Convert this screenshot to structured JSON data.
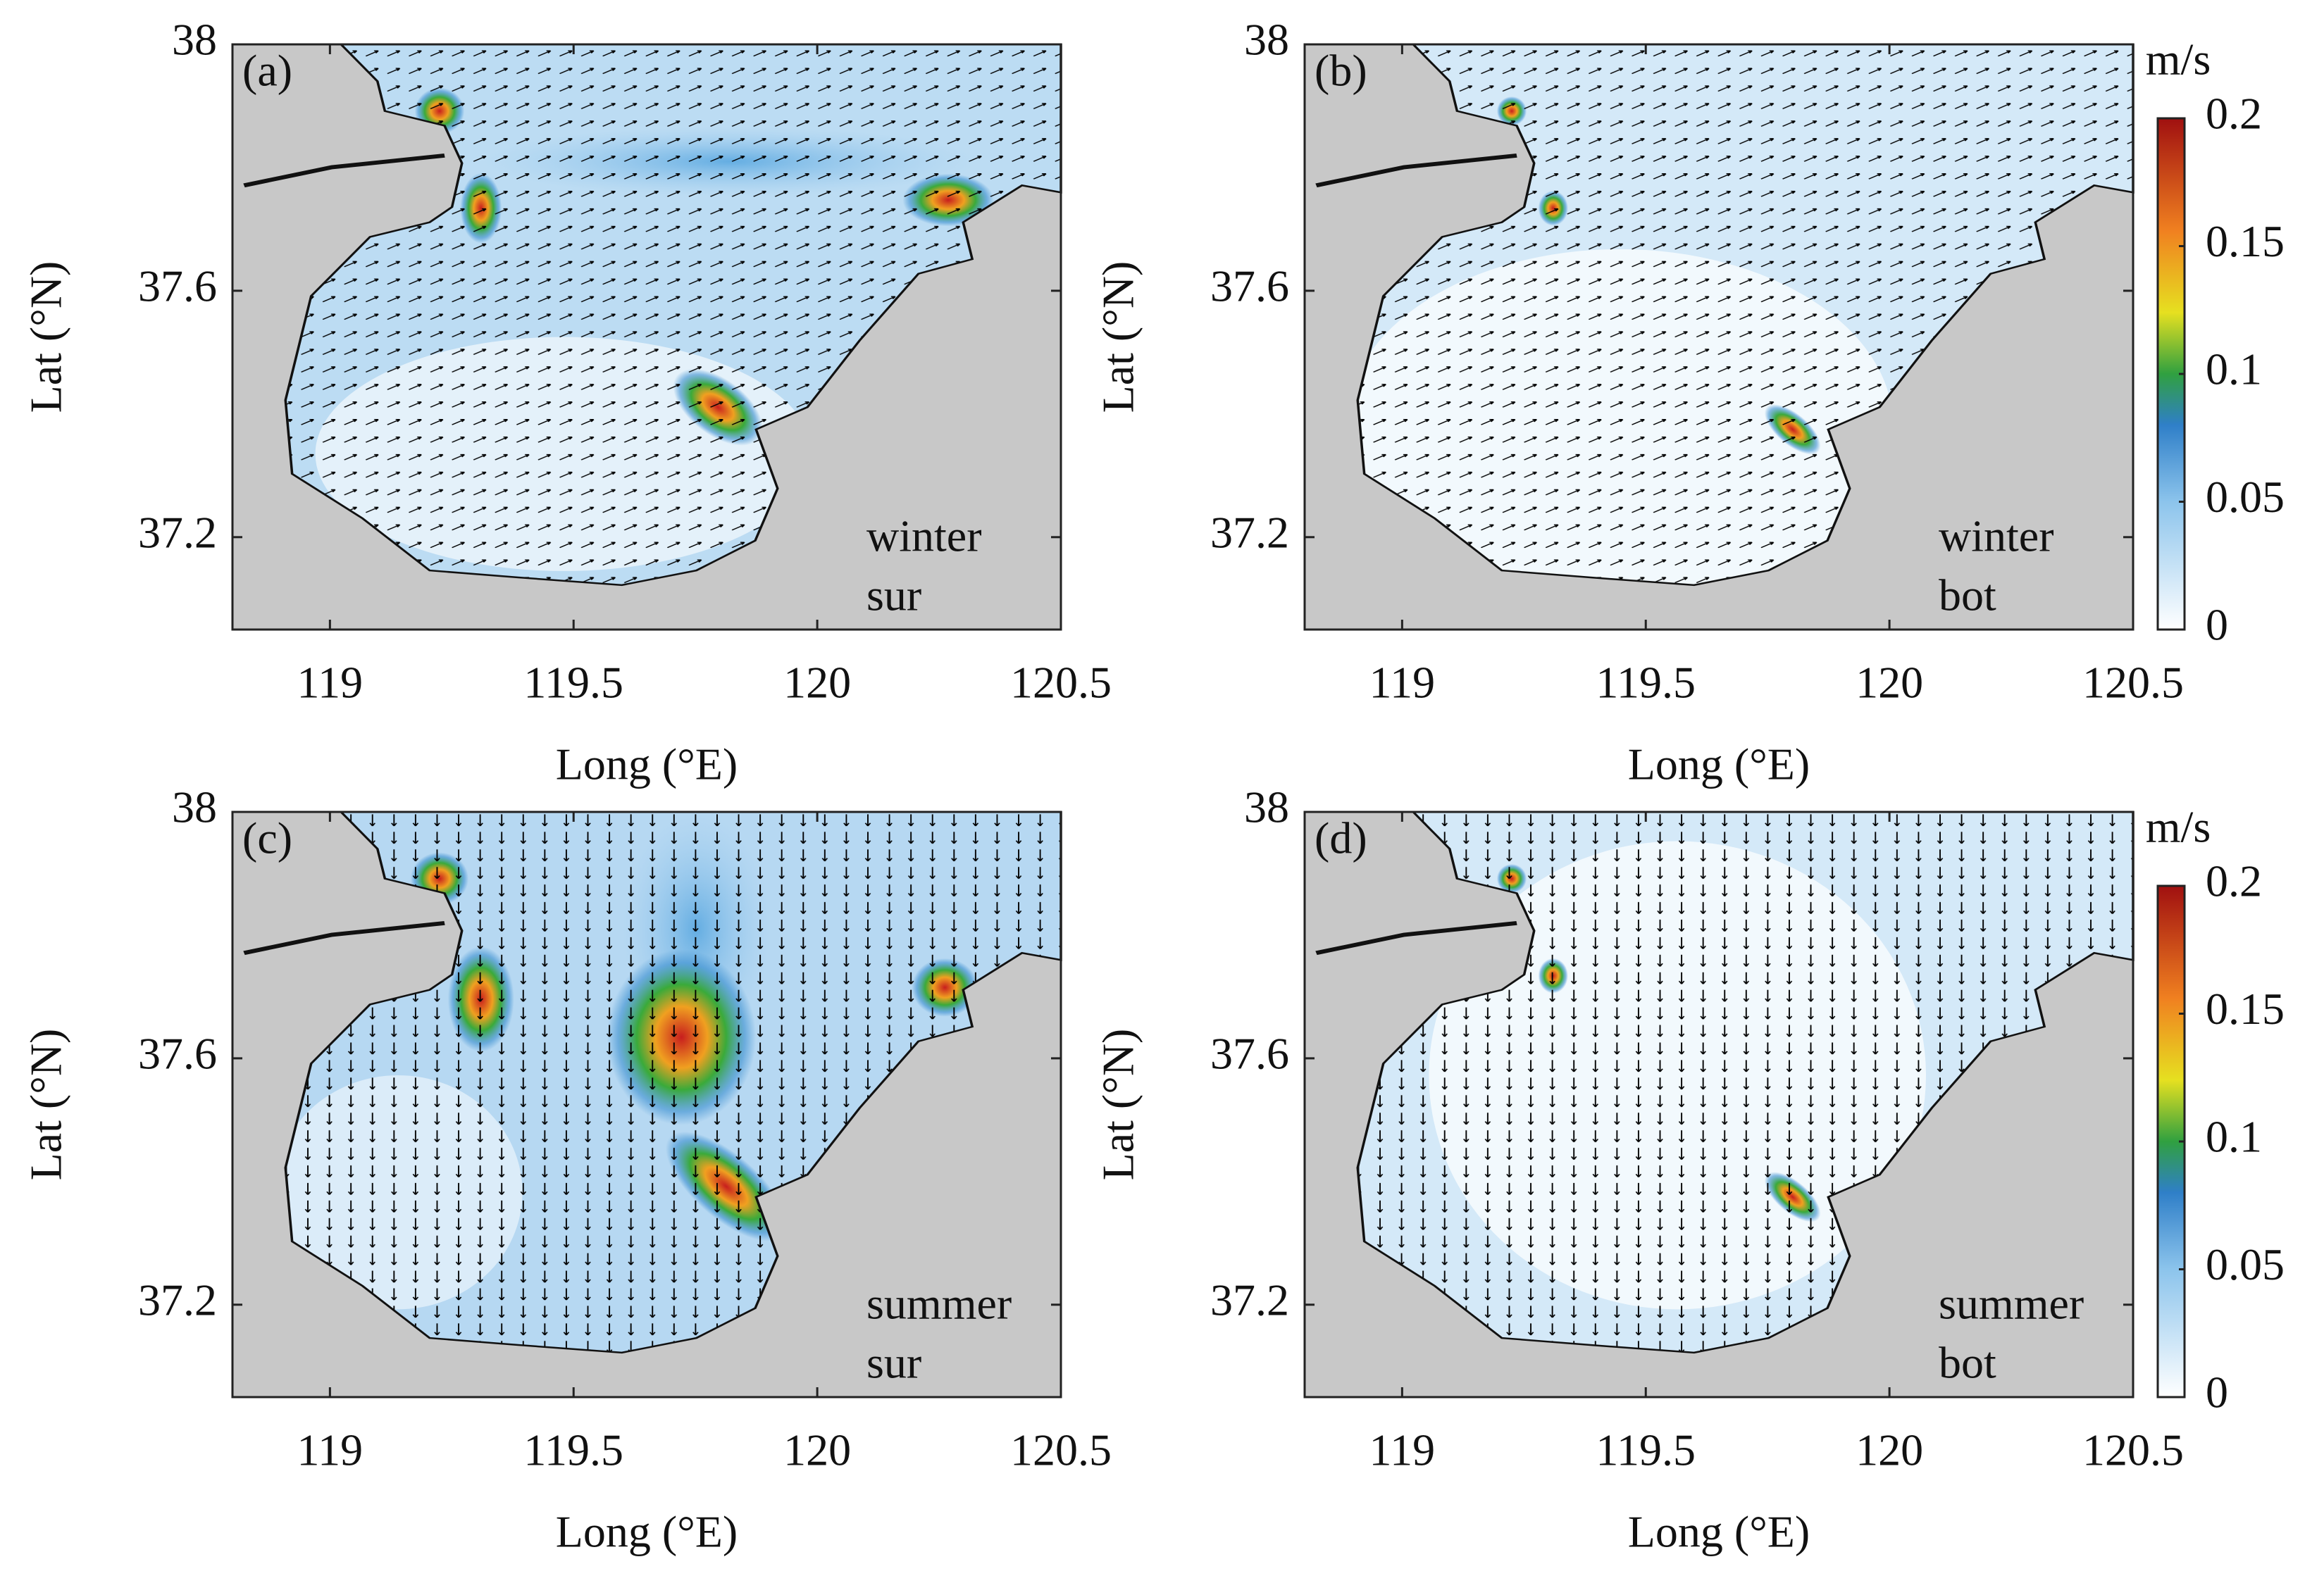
{
  "panels": [
    {
      "label": "(a)",
      "annotation": [
        "winter",
        "sur"
      ],
      "xlabel": "Long (°E)",
      "ylabel": "Lat (°N)",
      "xlim": [
        118.8,
        120.5
      ],
      "ylim": [
        37.05,
        38
      ],
      "xticks": [
        119,
        119.5,
        120,
        120.5
      ],
      "yticks": [
        37.2,
        37.6,
        38
      ]
    },
    {
      "label": "(b)",
      "annotation": [
        "winter",
        "bot"
      ],
      "xlabel": "Long (°E)",
      "ylabel": "Lat (°N)",
      "xlim": [
        118.8,
        120.5
      ],
      "ylim": [
        37.05,
        38
      ],
      "xticks": [
        119,
        119.5,
        120,
        120.5
      ],
      "yticks": [
        37.2,
        37.6,
        38
      ],
      "colorbar": {
        "unit": "m/s",
        "lim": [
          0,
          0.2
        ],
        "ticks": [
          0,
          0.05,
          0.1,
          0.15,
          0.2
        ]
      }
    },
    {
      "label": "(c)",
      "annotation": [
        "summer",
        "sur"
      ],
      "xlabel": "Long (°E)",
      "ylabel": "Lat (°N)",
      "xlim": [
        118.8,
        120.5
      ],
      "ylim": [
        37.05,
        38
      ],
      "xticks": [
        119,
        119.5,
        120,
        120.5
      ],
      "yticks": [
        37.2,
        37.6,
        38
      ]
    },
    {
      "label": "(d)",
      "annotation": [
        "summer",
        "bot"
      ],
      "xlabel": "Long (°E)",
      "ylabel": "Lat (°N)",
      "xlim": [
        118.8,
        120.5
      ],
      "ylim": [
        37.05,
        38
      ],
      "xticks": [
        119,
        119.5,
        120,
        120.5
      ],
      "yticks": [
        37.2,
        37.6,
        38
      ],
      "colorbar": {
        "unit": "m/s",
        "lim": [
          0,
          0.2
        ],
        "ticks": [
          0,
          0.05,
          0.1,
          0.15,
          0.2
        ]
      }
    }
  ]
}
